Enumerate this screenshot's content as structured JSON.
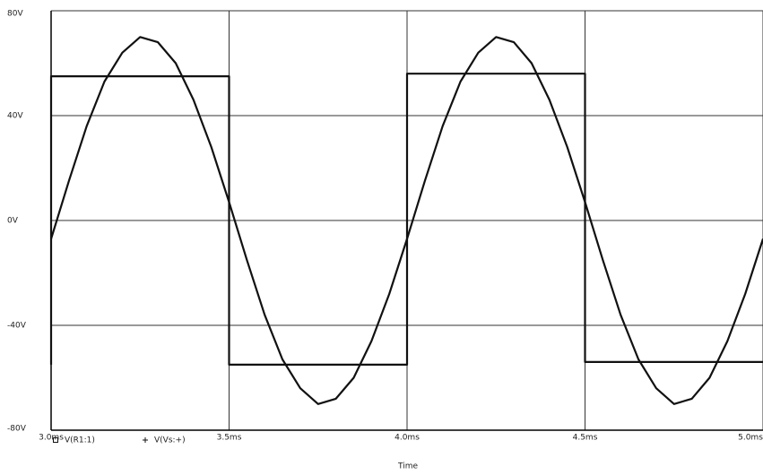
{
  "chart_data": {
    "type": "line",
    "x_label": "Time",
    "xlim": [
      3.0,
      5.0
    ],
    "xticks": [
      {
        "value": 3.0,
        "label": "3.0ms"
      },
      {
        "value": 3.5,
        "label": "3.5ms"
      },
      {
        "value": 4.0,
        "label": "4.0ms"
      },
      {
        "value": 4.5,
        "label": "4.5ms"
      },
      {
        "value": 5.0,
        "label": "5.0ms"
      }
    ],
    "ylim": [
      -80,
      80
    ],
    "yticks": [
      {
        "value": -80,
        "label": "-80V"
      },
      {
        "value": -40,
        "label": "-40V"
      },
      {
        "value": 0,
        "label": "0V"
      },
      {
        "value": 40,
        "label": "40V"
      },
      {
        "value": 80,
        "label": "80V"
      }
    ],
    "grid": true,
    "series": [
      {
        "name": "V(R1:1)",
        "color": "#111111",
        "marker": "square",
        "x": [
          3.0,
          3.0,
          3.5,
          3.5,
          4.0,
          4.0,
          4.5,
          4.5,
          5.0
        ],
        "values": [
          -55,
          55,
          55,
          -55,
          -55,
          56,
          56,
          -54,
          -54
        ]
      },
      {
        "name": "V(Vs:+)",
        "color": "#111111",
        "marker": "plus",
        "x": [
          3.0,
          3.05,
          3.1,
          3.15,
          3.2,
          3.25,
          3.3,
          3.35,
          3.4,
          3.45,
          3.5,
          3.55,
          3.6,
          3.65,
          3.7,
          3.75,
          3.8,
          3.85,
          3.9,
          3.95,
          4.0,
          4.05,
          4.1,
          4.15,
          4.2,
          4.25,
          4.3,
          4.35,
          4.4,
          4.45,
          4.5,
          4.55,
          4.6,
          4.65,
          4.7,
          4.75,
          4.8,
          4.85,
          4.9,
          4.95,
          5.0
        ],
        "values": [
          -7,
          15,
          36,
          53,
          64,
          70,
          68,
          60,
          46,
          28,
          7,
          -15,
          -36,
          -53,
          -64,
          -70,
          -68,
          -60,
          -46,
          -28,
          -7,
          15,
          36,
          53,
          64,
          70,
          68,
          60,
          46,
          28,
          7,
          -15,
          -36,
          -53,
          -64,
          -70,
          -68,
          -60,
          -46,
          -28,
          -7
        ]
      }
    ]
  }
}
